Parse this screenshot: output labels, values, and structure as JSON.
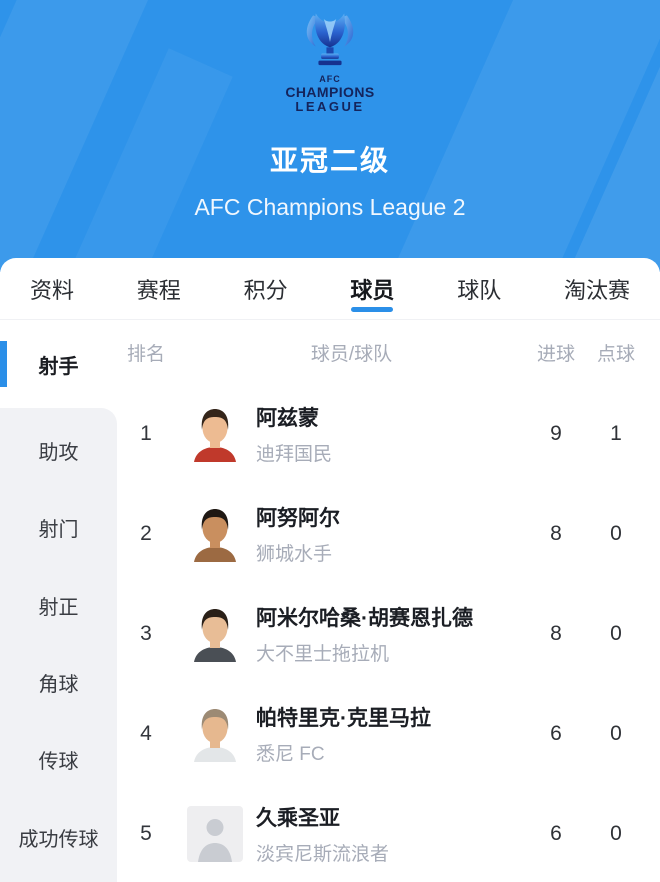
{
  "colors": {
    "accent_blue": "#2b8fe8",
    "header_blue": "#2e93ea"
  },
  "header": {
    "logo": {
      "line1": "AFC",
      "line2": "CHAMPIONS",
      "line3": "LEAGUE"
    },
    "title_cn": "亚冠二级",
    "title_en": "AFC Champions League 2"
  },
  "tabs": [
    {
      "key": "info",
      "label": "资料",
      "active": false
    },
    {
      "key": "schedule",
      "label": "赛程",
      "active": false
    },
    {
      "key": "standings",
      "label": "积分",
      "active": false
    },
    {
      "key": "players",
      "label": "球员",
      "active": true
    },
    {
      "key": "teams",
      "label": "球队",
      "active": false
    },
    {
      "key": "knockout",
      "label": "淘汰赛",
      "active": false
    }
  ],
  "sidebar": [
    {
      "key": "scorers",
      "label": "射手",
      "active": true
    },
    {
      "key": "assists",
      "label": "助攻",
      "active": false
    },
    {
      "key": "shots",
      "label": "射门",
      "active": false
    },
    {
      "key": "shots-on-target",
      "label": "射正",
      "active": false
    },
    {
      "key": "corners",
      "label": "角球",
      "active": false
    },
    {
      "key": "passes",
      "label": "传球",
      "active": false
    },
    {
      "key": "successful-passes",
      "label": "成功传球",
      "active": false
    }
  ],
  "table": {
    "columns": {
      "rank": "排名",
      "player": "球员/球队",
      "goals": "进球",
      "penalties": "点球"
    }
  },
  "rows": [
    {
      "rank": "1",
      "name": "阿兹蒙",
      "team": "迪拜国民",
      "goals": "9",
      "penalties": "1",
      "avatar": {
        "type": "photo",
        "hair": "#34251a",
        "skin": "#edbb92",
        "shirt": "#c0392b"
      }
    },
    {
      "rank": "2",
      "name": "阿努阿尔",
      "team": "狮城水手",
      "goals": "8",
      "penalties": "0",
      "avatar": {
        "type": "photo",
        "hair": "#1f1813",
        "skin": "#c98f5f",
        "shirt": "#9c6a42"
      }
    },
    {
      "rank": "3",
      "name": "阿米尔哈桑·胡赛恩扎德",
      "team": "大不里士拖拉机",
      "goals": "8",
      "penalties": "0",
      "avatar": {
        "type": "photo",
        "hair": "#2a2018",
        "skin": "#e8bd96",
        "shirt": "#4a4f55"
      }
    },
    {
      "rank": "4",
      "name": "帕特里克·克里马拉",
      "team": "悉尼 FC",
      "goals": "6",
      "penalties": "0",
      "avatar": {
        "type": "photo",
        "hair": "#9c8a74",
        "skin": "#e6b88f",
        "shirt": "#e3e6e8"
      }
    },
    {
      "rank": "5",
      "name": "久乘圣亚",
      "team": "淡宾尼斯流浪者",
      "goals": "6",
      "penalties": "0",
      "avatar": {
        "type": "placeholder",
        "bg": "#eeeef0",
        "fg": "#c9ccd2"
      }
    }
  ]
}
